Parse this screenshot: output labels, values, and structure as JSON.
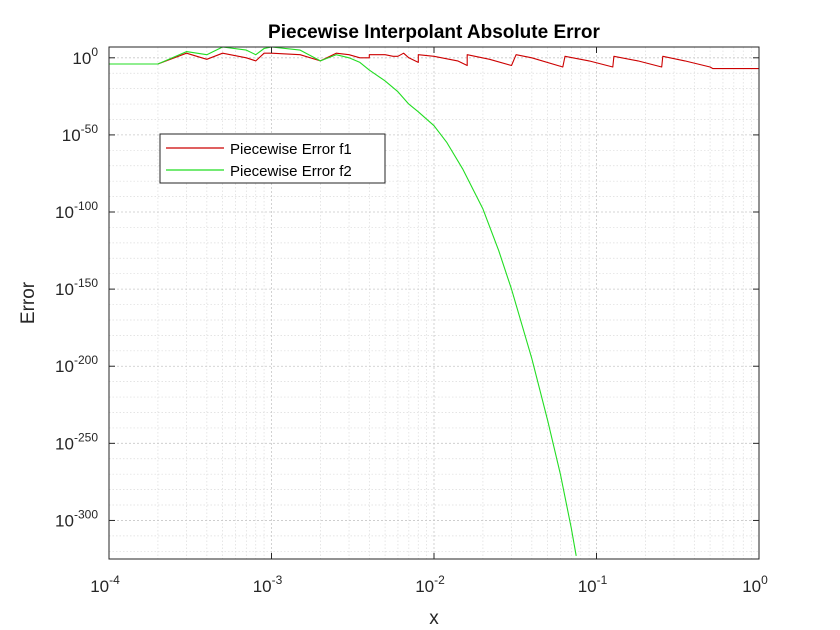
{
  "chart_data": {
    "type": "line",
    "title": "Piecewise Interpolant Absolute Error",
    "xlabel": "x",
    "ylabel": "Error",
    "x_scale": "log",
    "y_scale": "log",
    "xlim": [
      0.0001,
      1
    ],
    "ylim": [
      0.0,
      10000000.0
    ],
    "x_ticks": [
      {
        "base": "10",
        "exp": "-4"
      },
      {
        "base": "10",
        "exp": "-3"
      },
      {
        "base": "10",
        "exp": "-2"
      },
      {
        "base": "10",
        "exp": "-1"
      },
      {
        "base": "10",
        "exp": "0"
      }
    ],
    "y_ticks": [
      {
        "base": "10",
        "exp": "0"
      },
      {
        "base": "10",
        "exp": "-50"
      },
      {
        "base": "10",
        "exp": "-100"
      },
      {
        "base": "10",
        "exp": "-150"
      },
      {
        "base": "10",
        "exp": "-200"
      },
      {
        "base": "10",
        "exp": "-250"
      },
      {
        "base": "10",
        "exp": "-300"
      }
    ],
    "grid": true,
    "minor_grid": true,
    "legend_position": "upper-left",
    "series": [
      {
        "name": "Piecewise Error f1",
        "color": "#cc0000",
        "points": [
          [
            0.0001,
            -4
          ],
          [
            0.0002,
            -4
          ],
          [
            0.0003,
            3
          ],
          [
            0.0004,
            -1
          ],
          [
            0.0005,
            3
          ],
          [
            0.0007,
            0
          ],
          [
            0.0008,
            -2
          ],
          [
            0.0009,
            3
          ],
          [
            0.001,
            3
          ],
          [
            0.0015,
            2
          ],
          [
            0.002,
            -2
          ],
          [
            0.0025,
            3
          ],
          [
            0.003,
            2
          ],
          [
            0.0035,
            0
          ],
          [
            0.004,
            0
          ],
          [
            0.004,
            2
          ],
          [
            0.005,
            2
          ],
          [
            0.0056,
            1
          ],
          [
            0.006,
            1
          ],
          [
            0.0065,
            3
          ],
          [
            0.007,
            0
          ],
          [
            0.008,
            -3
          ],
          [
            0.008,
            2
          ],
          [
            0.01,
            1
          ],
          [
            0.014,
            -2
          ],
          [
            0.016,
            -5
          ],
          [
            0.016,
            2
          ],
          [
            0.022,
            -1
          ],
          [
            0.03,
            -5
          ],
          [
            0.032,
            2
          ],
          [
            0.04,
            0
          ],
          [
            0.062,
            -6
          ],
          [
            0.064,
            1
          ],
          [
            0.09,
            -2
          ],
          [
            0.126,
            -6
          ],
          [
            0.128,
            1
          ],
          [
            0.18,
            -2
          ],
          [
            0.252,
            -6
          ],
          [
            0.256,
            1
          ],
          [
            0.35,
            -2
          ],
          [
            0.5,
            -6
          ],
          [
            0.52,
            -7
          ],
          [
            1,
            -7
          ]
        ]
      },
      {
        "name": "Piecewise Error f2",
        "color": "#22dd22",
        "points": [
          [
            0.0001,
            -4
          ],
          [
            0.0002,
            -4
          ],
          [
            0.0003,
            4
          ],
          [
            0.0004,
            2
          ],
          [
            0.0005,
            8
          ],
          [
            0.0007,
            5
          ],
          [
            0.0008,
            2
          ],
          [
            0.0009,
            6
          ],
          [
            0.001,
            8
          ],
          [
            0.0015,
            5
          ],
          [
            0.002,
            -2
          ],
          [
            0.0025,
            2
          ],
          [
            0.003,
            0
          ],
          [
            0.0035,
            -3
          ],
          [
            0.004,
            -8
          ],
          [
            0.005,
            -15
          ],
          [
            0.006,
            -22
          ],
          [
            0.007,
            -30
          ],
          [
            0.008,
            -35
          ],
          [
            0.01,
            -44
          ],
          [
            0.012,
            -55
          ],
          [
            0.015,
            -72
          ],
          [
            0.02,
            -98
          ],
          [
            0.025,
            -125
          ],
          [
            0.03,
            -150
          ],
          [
            0.04,
            -195
          ],
          [
            0.05,
            -235
          ],
          [
            0.06,
            -270
          ],
          [
            0.07,
            -305
          ],
          [
            0.075,
            -323
          ]
        ]
      }
    ]
  }
}
